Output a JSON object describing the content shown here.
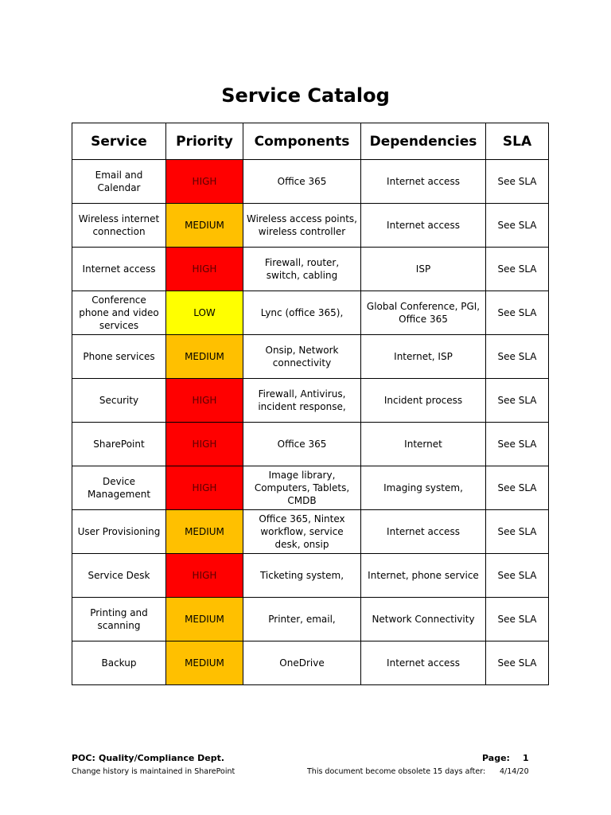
{
  "document": {
    "title": "Service Catalog"
  },
  "table": {
    "headers": [
      "Service",
      "Priority",
      "Components",
      "Dependencies",
      "SLA"
    ],
    "rows": [
      {
        "service": "Email and Calendar",
        "priority": "HIGH",
        "components": "Office 365",
        "dependencies": "Internet access",
        "sla": "See SLA"
      },
      {
        "service": "Wireless internet connection",
        "priority": "MEDIUM",
        "components": "Wireless access points, wireless controller",
        "dependencies": "Internet access",
        "sla": "See SLA"
      },
      {
        "service": "Internet access",
        "priority": "HIGH",
        "components": "Firewall, router, switch, cabling",
        "dependencies": "ISP",
        "sla": "See SLA"
      },
      {
        "service": "Conference phone and video services",
        "priority": "LOW",
        "components": "Lync (office 365),",
        "dependencies": "Global Conference, PGI, Office 365",
        "sla": "See SLA"
      },
      {
        "service": "Phone services",
        "priority": "MEDIUM",
        "components": "Onsip, Network connectivity",
        "dependencies": "Internet, ISP",
        "sla": "See SLA"
      },
      {
        "service": "Security",
        "priority": "HIGH",
        "components": "Firewall, Antivirus, incident response,",
        "dependencies": "Incident process",
        "sla": "See SLA"
      },
      {
        "service": "SharePoint",
        "priority": "HIGH",
        "components": "Office 365",
        "dependencies": "Internet",
        "sla": "See SLA"
      },
      {
        "service": "Device Management",
        "priority": "HIGH",
        "components": "Image library, Computers, Tablets, CMDB",
        "dependencies": "Imaging system,",
        "sla": "See SLA"
      },
      {
        "service": "User Provisioning",
        "priority": "MEDIUM",
        "components": "Office 365, Nintex workflow, service desk, onsip",
        "dependencies": "Internet access",
        "sla": "See SLA"
      },
      {
        "service": "Service Desk",
        "priority": "HIGH",
        "components": "Ticketing system,",
        "dependencies": "Internet, phone service",
        "sla": "See SLA"
      },
      {
        "service": "Printing and scanning",
        "priority": "MEDIUM",
        "components": "Printer, email,",
        "dependencies": "Network Connectivity",
        "sla": "See SLA"
      },
      {
        "service": "Backup",
        "priority": "MEDIUM",
        "components": "OneDrive",
        "dependencies": "Internet access",
        "sla": "See SLA"
      }
    ]
  },
  "footer": {
    "poc_label": "POC:",
    "poc_value": "Quality/Compliance Dept.",
    "page_label": "Page:",
    "page_number": "1",
    "history_note": "Change history is maintained in SharePoint",
    "obsolete_note": "This document become obsolete 15 days after:",
    "obsolete_date": "4/14/20"
  },
  "colors": {
    "high": "#ff0000",
    "medium": "#ffc000",
    "low": "#ffff00"
  }
}
